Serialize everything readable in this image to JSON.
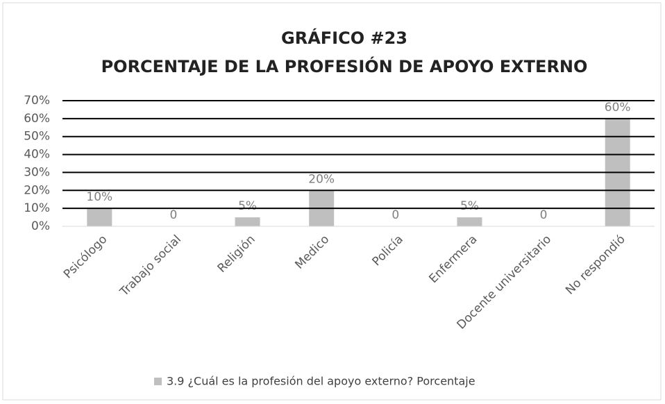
{
  "chart_data": {
    "type": "bar",
    "title": "GRÁFICO #23",
    "subtitle": "PORCENTAJE DE LA PROFESIÓN DE APOYO EXTERNO",
    "categories": [
      "Psicólogo",
      "Trabajo social",
      "Religión",
      "Medico",
      "Policía",
      "Enfermera",
      "Docente universitario",
      "No respondió"
    ],
    "series": [
      {
        "name": "3.9 ¿Cuál es la profesión del apoyo externo? Porcentaje",
        "color": "#bfbfbf",
        "values": [
          10,
          0,
          5,
          20,
          0,
          5,
          0,
          60
        ],
        "value_labels": [
          "10%",
          "0",
          "5%",
          "20%",
          "0",
          "5%",
          "0",
          "60%"
        ]
      }
    ],
    "ylim": [
      0,
      70
    ],
    "yticks": [
      {
        "value": 0,
        "label": "0%"
      },
      {
        "value": 10,
        "label": "10%"
      },
      {
        "value": 20,
        "label": "20%"
      },
      {
        "value": 30,
        "label": "30%"
      },
      {
        "value": 40,
        "label": "40%"
      },
      {
        "value": 50,
        "label": "50%"
      },
      {
        "value": 60,
        "label": "60%"
      },
      {
        "value": 70,
        "label": "70%"
      }
    ],
    "grid": true,
    "legend": "bottom"
  }
}
